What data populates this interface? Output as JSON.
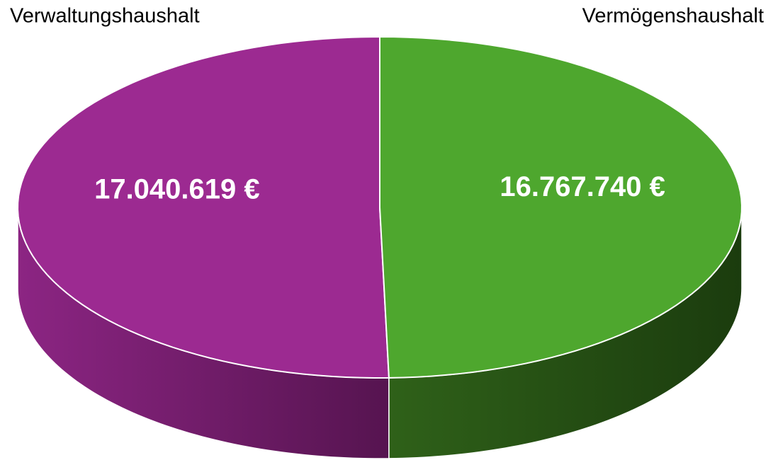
{
  "chart_data": {
    "type": "pie",
    "categories": [
      "Verwaltungshaushalt",
      "Vermögenshaushalt"
    ],
    "values": [
      17040619,
      16767740
    ],
    "value_labels": [
      "17.040.619 €",
      "16.767.740 €"
    ],
    "colors": [
      "#9c2a91",
      "#4ea72e"
    ]
  }
}
